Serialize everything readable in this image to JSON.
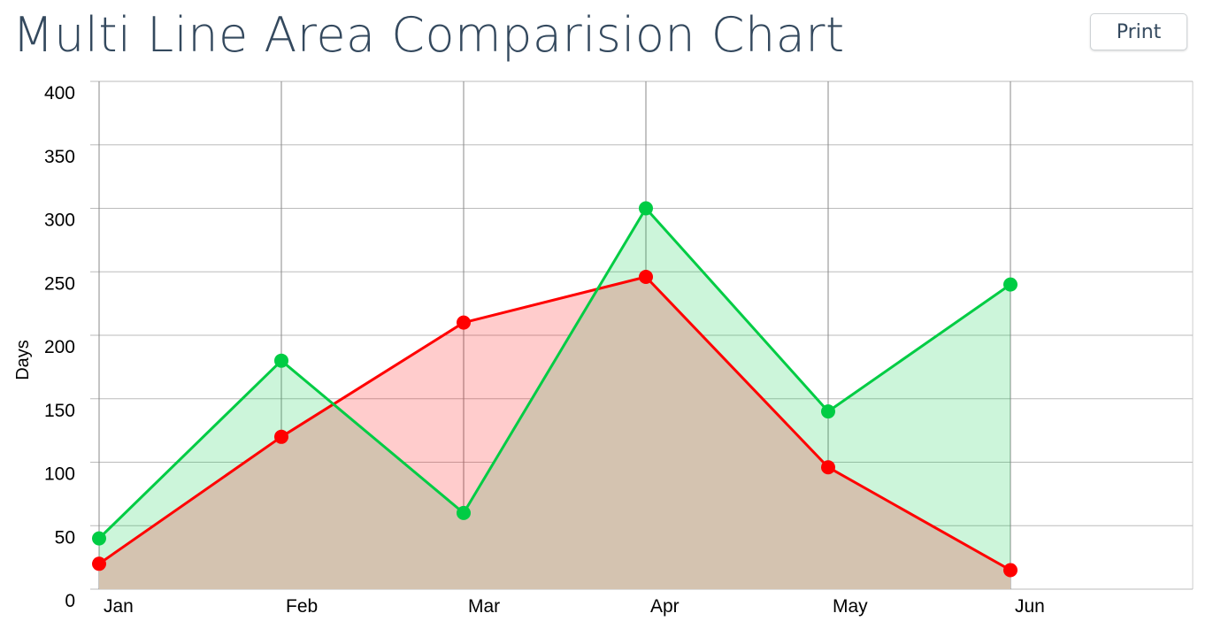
{
  "page": {
    "title": "Multi Line Area Comparision Chart",
    "print_label": "Print"
  },
  "chart_data": {
    "type": "area",
    "categories": [
      "Jan",
      "Feb",
      "Mar",
      "Apr",
      "May",
      "Jun"
    ],
    "series": [
      {
        "values": [
          40,
          180,
          60,
          300,
          140,
          240
        ],
        "color": "#00cc44",
        "fill": "rgba(0, 204, 68, 0.2)"
      },
      {
        "values": [
          20,
          120,
          210,
          246,
          96,
          15
        ],
        "color": "#ff0000",
        "fill": "rgba(255, 0, 0, 0.2)"
      }
    ],
    "overlap_fill": "#d4c3b0",
    "title": "",
    "xlabel": "",
    "ylabel": "Days",
    "ylim": [
      0,
      400
    ],
    "yticks": [
      0,
      50,
      100,
      150,
      200,
      250,
      300,
      350,
      400
    ],
    "grid": true,
    "legend": "none"
  }
}
